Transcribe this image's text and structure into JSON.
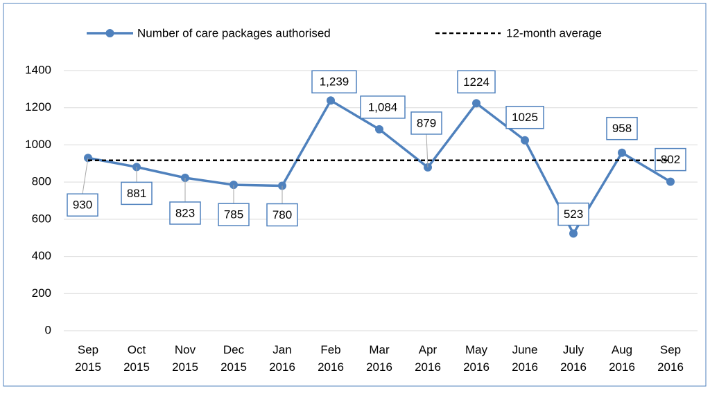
{
  "chart_data": {
    "type": "line",
    "categories": [
      "Sep 2015",
      "Oct 2015",
      "Nov 2015",
      "Dec 2015",
      "Jan 2016",
      "Feb 2016",
      "Mar 2016",
      "Apr 2016",
      "May 2016",
      "June 2016",
      "July 2016",
      "Aug 2016",
      "Sep 2016"
    ],
    "series": [
      {
        "name": "Number of care packages authorised",
        "color": "#4f81bd",
        "values": [
          930,
          881,
          823,
          785,
          780,
          1239,
          1084,
          879,
          1224,
          1025,
          523,
          958,
          802
        ],
        "value_labels": [
          "930",
          "881",
          "823",
          "785",
          "780",
          "1,239",
          "1,084",
          "879",
          "1224",
          "1025",
          "523",
          "958",
          "802"
        ]
      },
      {
        "name": "12-month average",
        "color": "#000000",
        "dashed": true,
        "values": [
          917,
          917,
          917,
          917,
          917,
          917,
          917,
          917,
          917,
          917,
          917,
          917,
          917
        ]
      }
    ],
    "ylim": [
      0,
      1400
    ],
    "yticks": [
      0,
      200,
      400,
      600,
      800,
      1000,
      1200,
      1400
    ],
    "grid": true,
    "legend": "top"
  }
}
